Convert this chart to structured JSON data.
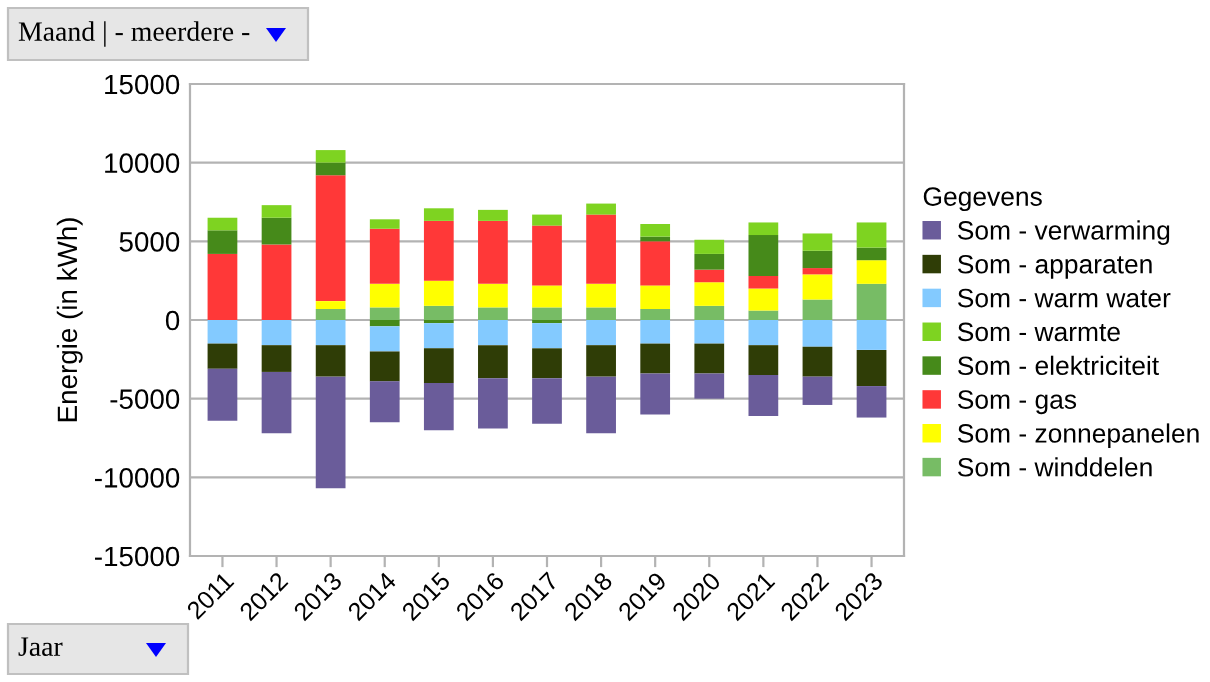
{
  "chart_data": {
    "type": "bar",
    "stacked": true,
    "ylabel": "Energie (in kWh)",
    "legend_title": "Gegevens",
    "legend": "right",
    "grid": "y",
    "annotations": [
      "Maand | - meerdere -",
      "Jaar"
    ],
    "categories": [
      "2011",
      "2012",
      "2013",
      "2014",
      "2015",
      "2016",
      "2017",
      "2018",
      "2019",
      "2020",
      "2021",
      "2022",
      "2023"
    ],
    "ylim": [
      -15000,
      15000
    ],
    "yticks": [
      -15000,
      -10000,
      -5000,
      0,
      5000,
      10000,
      15000
    ],
    "series": [
      {
        "name": "Som - winddelen",
        "color": "#77bc65",
        "values": [
          0,
          0,
          700,
          800,
          900,
          800,
          800,
          800,
          700,
          900,
          600,
          1300,
          2300
        ]
      },
      {
        "name": "Som - zonnepanelen",
        "color": "#ffff00",
        "values": [
          0,
          0,
          500,
          1500,
          1600,
          1500,
          1400,
          1500,
          1500,
          1500,
          1400,
          1600,
          1500
        ]
      },
      {
        "name": "Som - gas",
        "color": "#ff3838",
        "values": [
          4200,
          4800,
          8000,
          3500,
          3800,
          4000,
          3800,
          4400,
          2800,
          800,
          800,
          400,
          0
        ]
      },
      {
        "name": "Som - elektriciteit",
        "color": "#468a1a",
        "values": [
          1500,
          1700,
          800,
          -400,
          -200,
          0,
          -200,
          0,
          300,
          1000,
          2600,
          1100,
          800
        ]
      },
      {
        "name": "Som - warmte",
        "color": "#7ed321",
        "values": [
          800,
          800,
          800,
          600,
          800,
          700,
          700,
          700,
          800,
          900,
          800,
          1100,
          1600
        ]
      },
      {
        "name": "Som - warm water",
        "color": "#83caff",
        "values": [
          -1500,
          -1600,
          -1600,
          -1600,
          -1600,
          -1600,
          -1600,
          -1600,
          -1500,
          -1500,
          -1600,
          -1700,
          -1900
        ]
      },
      {
        "name": "Som - apparaten",
        "color": "#2f3d06",
        "values": [
          -1600,
          -1700,
          -2000,
          -1900,
          -2200,
          -2100,
          -1900,
          -2000,
          -1900,
          -1900,
          -1900,
          -1900,
          -2300
        ]
      },
      {
        "name": "Som - verwarming",
        "color": "#6a5c9a",
        "values": [
          -3300,
          -3900,
          -7100,
          -2600,
          -3000,
          -3200,
          -2900,
          -3600,
          -2600,
          -1600,
          -2600,
          -1800,
          -2000
        ]
      }
    ]
  }
}
